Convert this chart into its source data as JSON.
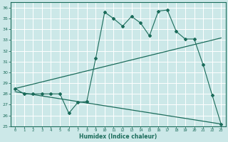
{
  "xlabel": "Humidex (Indice chaleur)",
  "background_color": "#cce8e8",
  "line_color": "#1a6b5a",
  "xlim": [
    -0.5,
    23.5
  ],
  "ylim": [
    25,
    36.5
  ],
  "yticks": [
    25,
    26,
    27,
    28,
    29,
    30,
    31,
    32,
    33,
    34,
    35,
    36
  ],
  "xticks": [
    0,
    1,
    2,
    3,
    4,
    5,
    6,
    7,
    8,
    9,
    10,
    11,
    12,
    13,
    14,
    15,
    16,
    17,
    18,
    19,
    20,
    21,
    22,
    23
  ],
  "line1_x": [
    0,
    1,
    2,
    3,
    4,
    5,
    6,
    7,
    8,
    9,
    10,
    11,
    12,
    13,
    14,
    15,
    16,
    17,
    18,
    19,
    20,
    21,
    22,
    23
  ],
  "line1_y": [
    28.5,
    28.0,
    28.0,
    28.0,
    28.0,
    28.0,
    26.2,
    27.2,
    27.3,
    31.3,
    35.6,
    35.0,
    34.3,
    35.2,
    34.6,
    33.4,
    35.7,
    35.8,
    33.8,
    33.1,
    33.1,
    30.7,
    27.9,
    25.2
  ],
  "line2_x": [
    0,
    23
  ],
  "line2_y": [
    28.5,
    33.2
  ],
  "line3_x": [
    0,
    23
  ],
  "line3_y": [
    28.2,
    25.2
  ]
}
